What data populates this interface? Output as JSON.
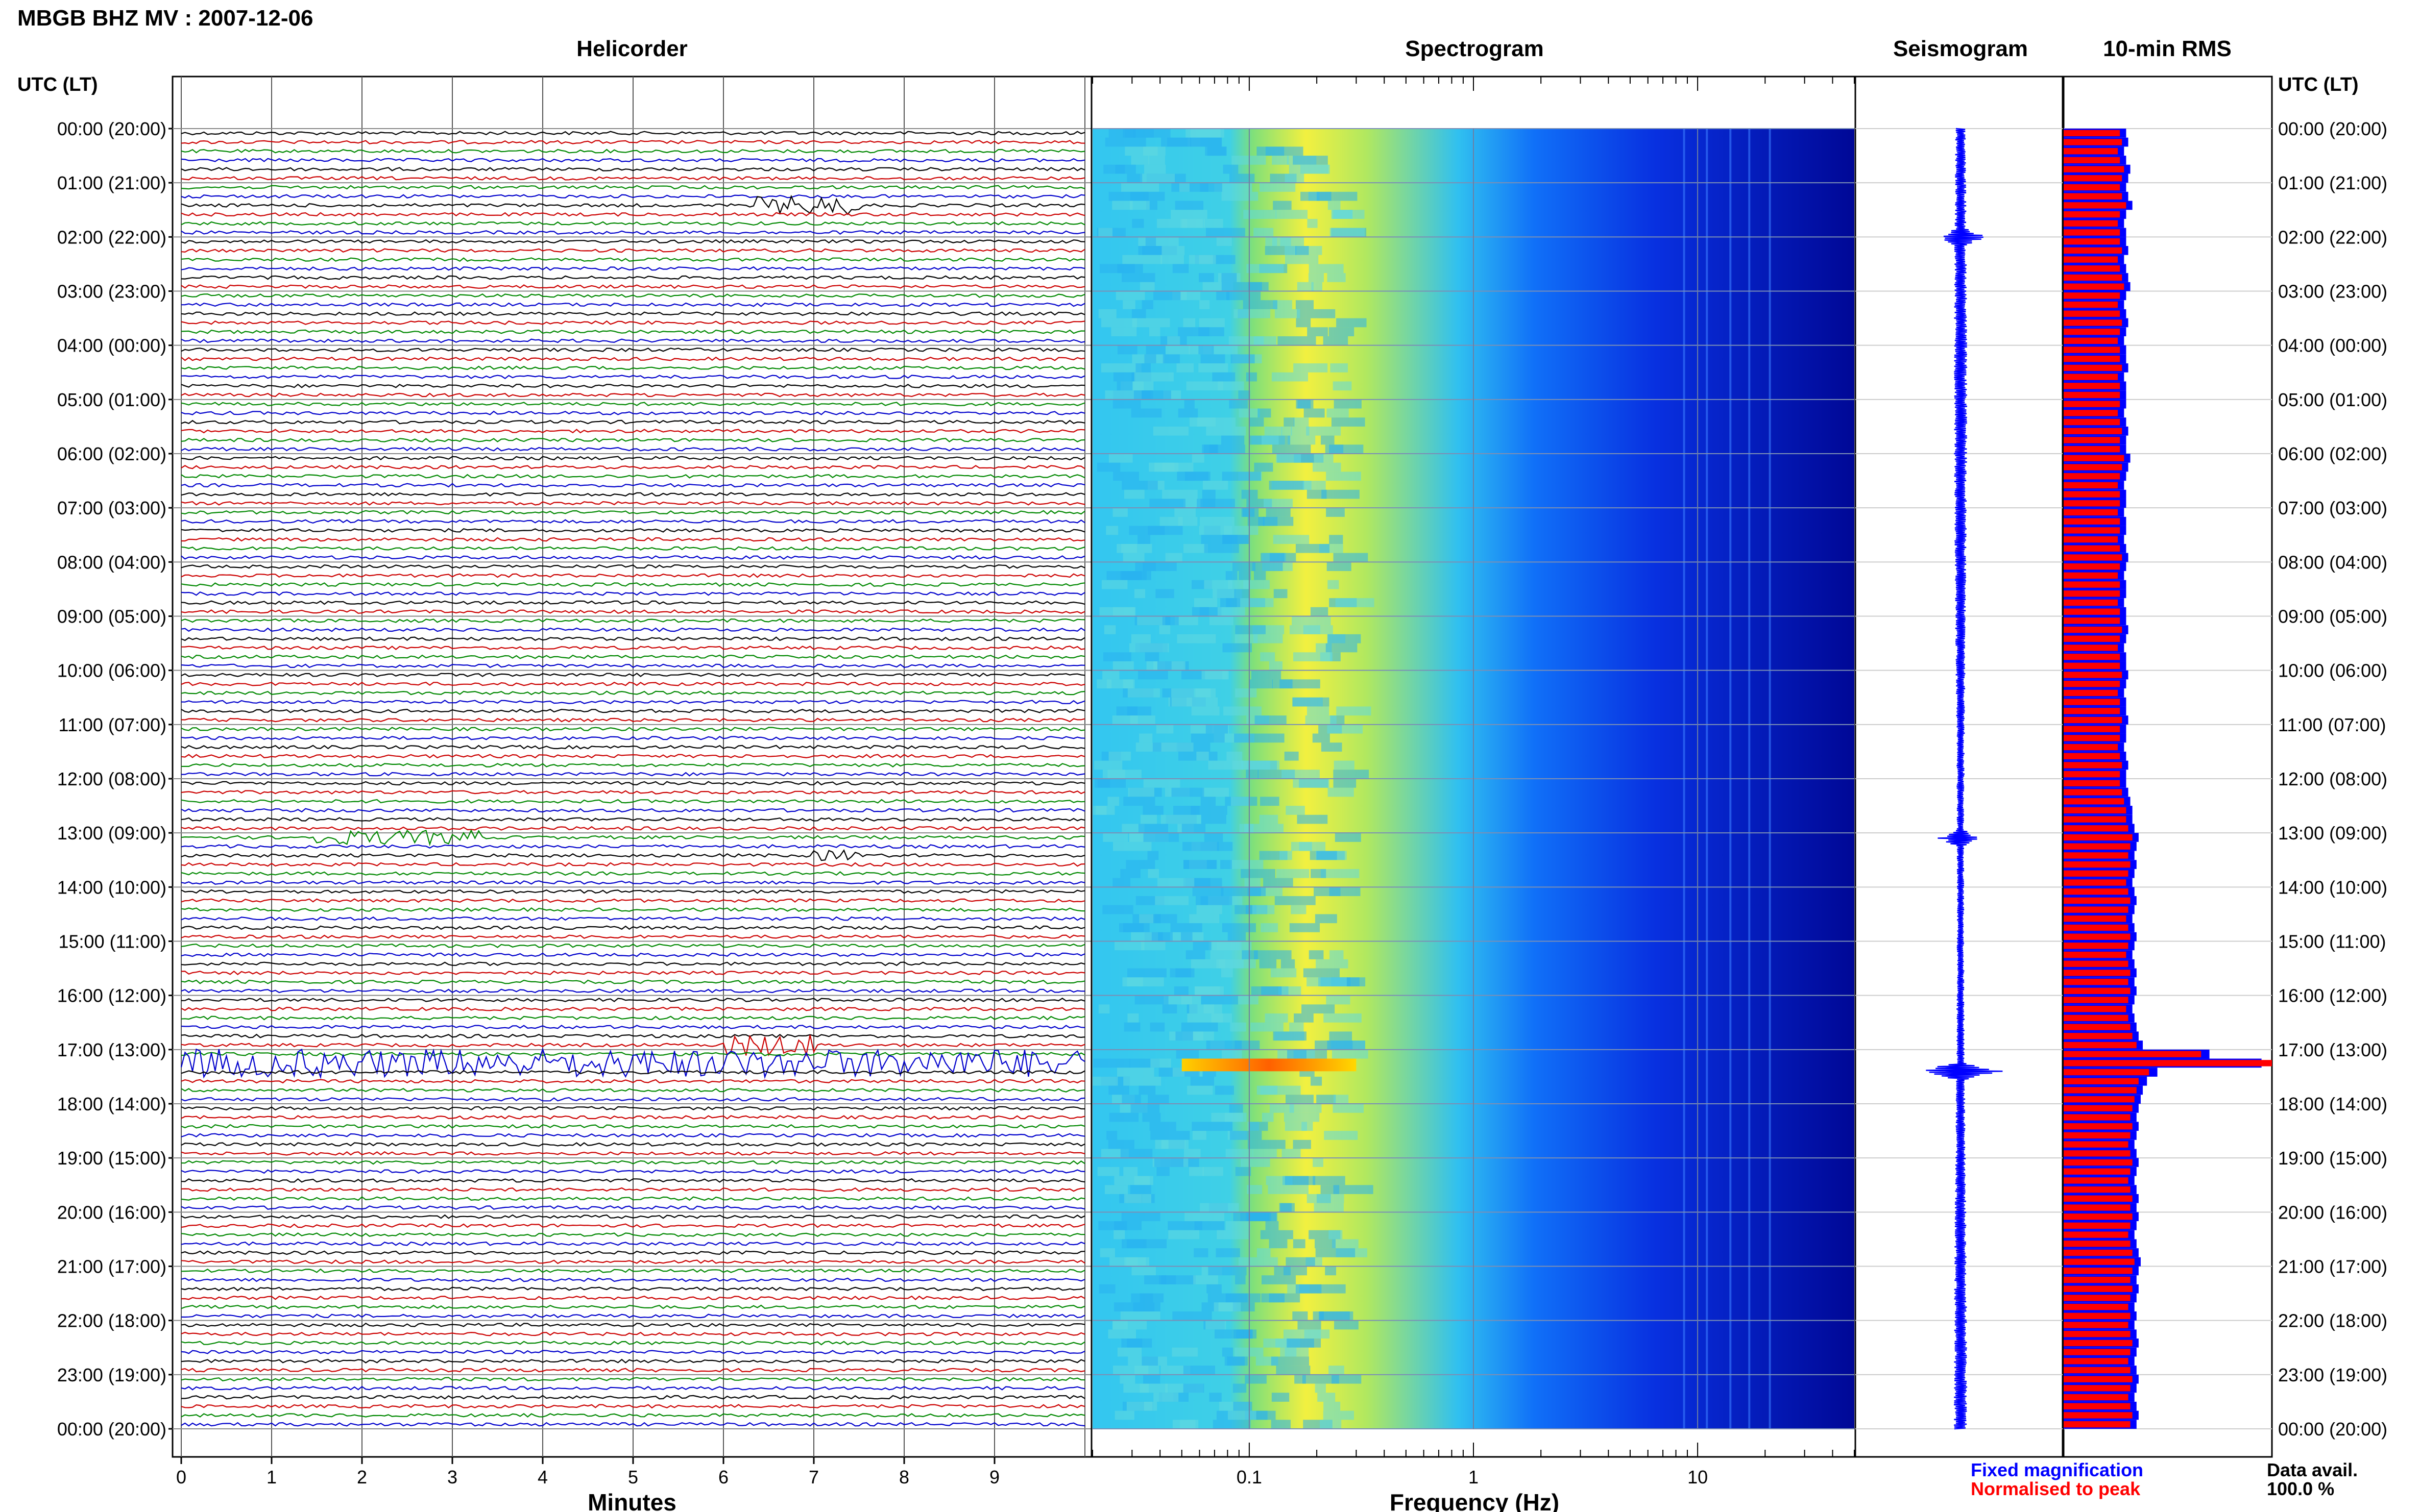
{
  "header": {
    "title": "MBGB BHZ MV : 2007-12-06"
  },
  "colors": {
    "trace_cycle": [
      "#000000",
      "#cc0000",
      "#008800",
      "#0000cc"
    ],
    "rms_fixed": "#0000ff",
    "rms_normalised": "#ff0000",
    "spectrogram_scale": [
      "#00007f",
      "#0000ff",
      "#0080ff",
      "#00ffff",
      "#80ff80",
      "#ffff00",
      "#ff8000",
      "#ff0000"
    ]
  },
  "panels": {
    "helicorder": "Helicorder",
    "spectrogram": "Spectrogram",
    "seismogram": "Seismogram",
    "rms": "10-min RMS"
  },
  "time_axis": {
    "label": "UTC (LT)",
    "ticks": [
      "00:00 (20:00)",
      "01:00 (21:00)",
      "02:00 (22:00)",
      "03:00 (23:00)",
      "04:00 (00:00)",
      "05:00 (01:00)",
      "06:00 (02:00)",
      "07:00 (03:00)",
      "08:00 (04:00)",
      "09:00 (05:00)",
      "10:00 (06:00)",
      "11:00 (07:00)",
      "12:00 (08:00)",
      "13:00 (09:00)",
      "14:00 (10:00)",
      "15:00 (11:00)",
      "16:00 (12:00)",
      "17:00 (13:00)",
      "18:00 (14:00)",
      "19:00 (15:00)",
      "20:00 (16:00)",
      "21:00 (17:00)",
      "22:00 (18:00)",
      "23:00 (19:00)",
      "00:00 (20:00)"
    ]
  },
  "helicorder_axis": {
    "xlabel": "Minutes",
    "ticks": [
      "0",
      "1",
      "2",
      "3",
      "4",
      "5",
      "6",
      "7",
      "8",
      "9"
    ],
    "xlim": [
      0,
      10
    ]
  },
  "spectrogram_axis": {
    "xlabel": "Frequency (Hz)",
    "ticks": [
      "0.1",
      "1",
      "10"
    ],
    "xlim": [
      0.02,
      50
    ],
    "scale": "log"
  },
  "legend": {
    "fixed": "Fixed magnification",
    "normalised": "Normalised to peak"
  },
  "availability": {
    "label": "Data avail.",
    "value": "100.0 %"
  },
  "chart_data": [
    {
      "type": "line",
      "name": "helicorder",
      "rows_per_hour": 6,
      "xlabel": "Minutes",
      "ylabel": "UTC (LT)",
      "events": [
        {
          "row": 8,
          "start_min": 6.3,
          "end_min": 7.5,
          "amplitude": 2.5
        },
        {
          "row": 78,
          "start_min": 1.5,
          "end_min": 3.3,
          "amplitude": 2.0
        },
        {
          "row": 80,
          "start_min": 7.0,
          "end_min": 7.5,
          "amplitude": 1.5
        },
        {
          "row": 101,
          "start_min": 6.0,
          "end_min": 7.0,
          "amplitude": 3.0
        },
        {
          "row": 103,
          "start_min": 0.0,
          "end_min": 10.0,
          "amplitude": 4.0
        }
      ]
    },
    {
      "type": "heatmap",
      "name": "spectrogram",
      "xlabel": "Frequency (Hz)",
      "xlim": [
        0.02,
        50
      ],
      "peak_frequency_hz": 0.25,
      "event_band": {
        "row": 103,
        "f_low": 0.05,
        "f_high": 0.3
      }
    },
    {
      "type": "line",
      "name": "seismogram",
      "event_hours": [
        2.0,
        13.1,
        17.4
      ]
    },
    {
      "type": "bar",
      "name": "10-min RMS",
      "series": [
        {
          "name": "Fixed magnification",
          "values": [
            0.3,
            0.31,
            0.29,
            0.3,
            0.32,
            0.31,
            0.3,
            0.31,
            0.33,
            0.3,
            0.29,
            0.3,
            0.3,
            0.31,
            0.29,
            0.3,
            0.31,
            0.32,
            0.3,
            0.29,
            0.3,
            0.31,
            0.3,
            0.29,
            0.3,
            0.3,
            0.31,
            0.29,
            0.3,
            0.3,
            0.3,
            0.29,
            0.3,
            0.31,
            0.3,
            0.3,
            0.32,
            0.31,
            0.3,
            0.29,
            0.3,
            0.3,
            0.29,
            0.3,
            0.3,
            0.29,
            0.3,
            0.31,
            0.3,
            0.29,
            0.3,
            0.3,
            0.29,
            0.3,
            0.3,
            0.31,
            0.3,
            0.29,
            0.3,
            0.3,
            0.31,
            0.3,
            0.29,
            0.3,
            0.3,
            0.31,
            0.3,
            0.3,
            0.29,
            0.3,
            0.31,
            0.3,
            0.3,
            0.31,
            0.32,
            0.33,
            0.33,
            0.34,
            0.36,
            0.35,
            0.34,
            0.35,
            0.34,
            0.33,
            0.34,
            0.35,
            0.34,
            0.33,
            0.34,
            0.35,
            0.34,
            0.33,
            0.34,
            0.35,
            0.34,
            0.35,
            0.34,
            0.33,
            0.34,
            0.35,
            0.36,
            0.38,
            0.7,
            0.95,
            0.45,
            0.4,
            0.38,
            0.37,
            0.36,
            0.35,
            0.36,
            0.35,
            0.34,
            0.35,
            0.36,
            0.35,
            0.34,
            0.35,
            0.36,
            0.35,
            0.36,
            0.35,
            0.34,
            0.35,
            0.36,
            0.37,
            0.36,
            0.35,
            0.36,
            0.35,
            0.34,
            0.35,
            0.34,
            0.35,
            0.36,
            0.35,
            0.34,
            0.35,
            0.36,
            0.35,
            0.34,
            0.35,
            0.36,
            0.35
          ]
        },
        {
          "name": "Normalised to peak",
          "values": [
            0.27,
            0.28,
            0.26,
            0.27,
            0.29,
            0.28,
            0.27,
            0.28,
            0.3,
            0.27,
            0.26,
            0.27,
            0.27,
            0.28,
            0.26,
            0.27,
            0.28,
            0.29,
            0.27,
            0.26,
            0.27,
            0.28,
            0.27,
            0.26,
            0.27,
            0.27,
            0.28,
            0.26,
            0.27,
            0.27,
            0.27,
            0.26,
            0.27,
            0.28,
            0.27,
            0.27,
            0.29,
            0.28,
            0.27,
            0.26,
            0.27,
            0.27,
            0.26,
            0.27,
            0.27,
            0.26,
            0.27,
            0.28,
            0.27,
            0.26,
            0.27,
            0.27,
            0.26,
            0.27,
            0.27,
            0.28,
            0.27,
            0.26,
            0.27,
            0.27,
            0.28,
            0.27,
            0.26,
            0.27,
            0.27,
            0.28,
            0.27,
            0.27,
            0.26,
            0.27,
            0.28,
            0.27,
            0.27,
            0.28,
            0.29,
            0.3,
            0.3,
            0.31,
            0.33,
            0.32,
            0.31,
            0.32,
            0.31,
            0.3,
            0.31,
            0.32,
            0.31,
            0.3,
            0.31,
            0.32,
            0.31,
            0.3,
            0.31,
            0.32,
            0.31,
            0.32,
            0.31,
            0.3,
            0.31,
            0.32,
            0.33,
            0.35,
            0.66,
            1.0,
            0.41,
            0.36,
            0.35,
            0.34,
            0.33,
            0.32,
            0.33,
            0.32,
            0.31,
            0.32,
            0.33,
            0.32,
            0.31,
            0.32,
            0.33,
            0.32,
            0.33,
            0.32,
            0.31,
            0.32,
            0.33,
            0.34,
            0.33,
            0.32,
            0.33,
            0.32,
            0.31,
            0.32,
            0.31,
            0.32,
            0.33,
            0.32,
            0.31,
            0.32,
            0.33,
            0.32,
            0.31,
            0.32,
            0.33,
            0.32
          ]
        }
      ]
    }
  ]
}
